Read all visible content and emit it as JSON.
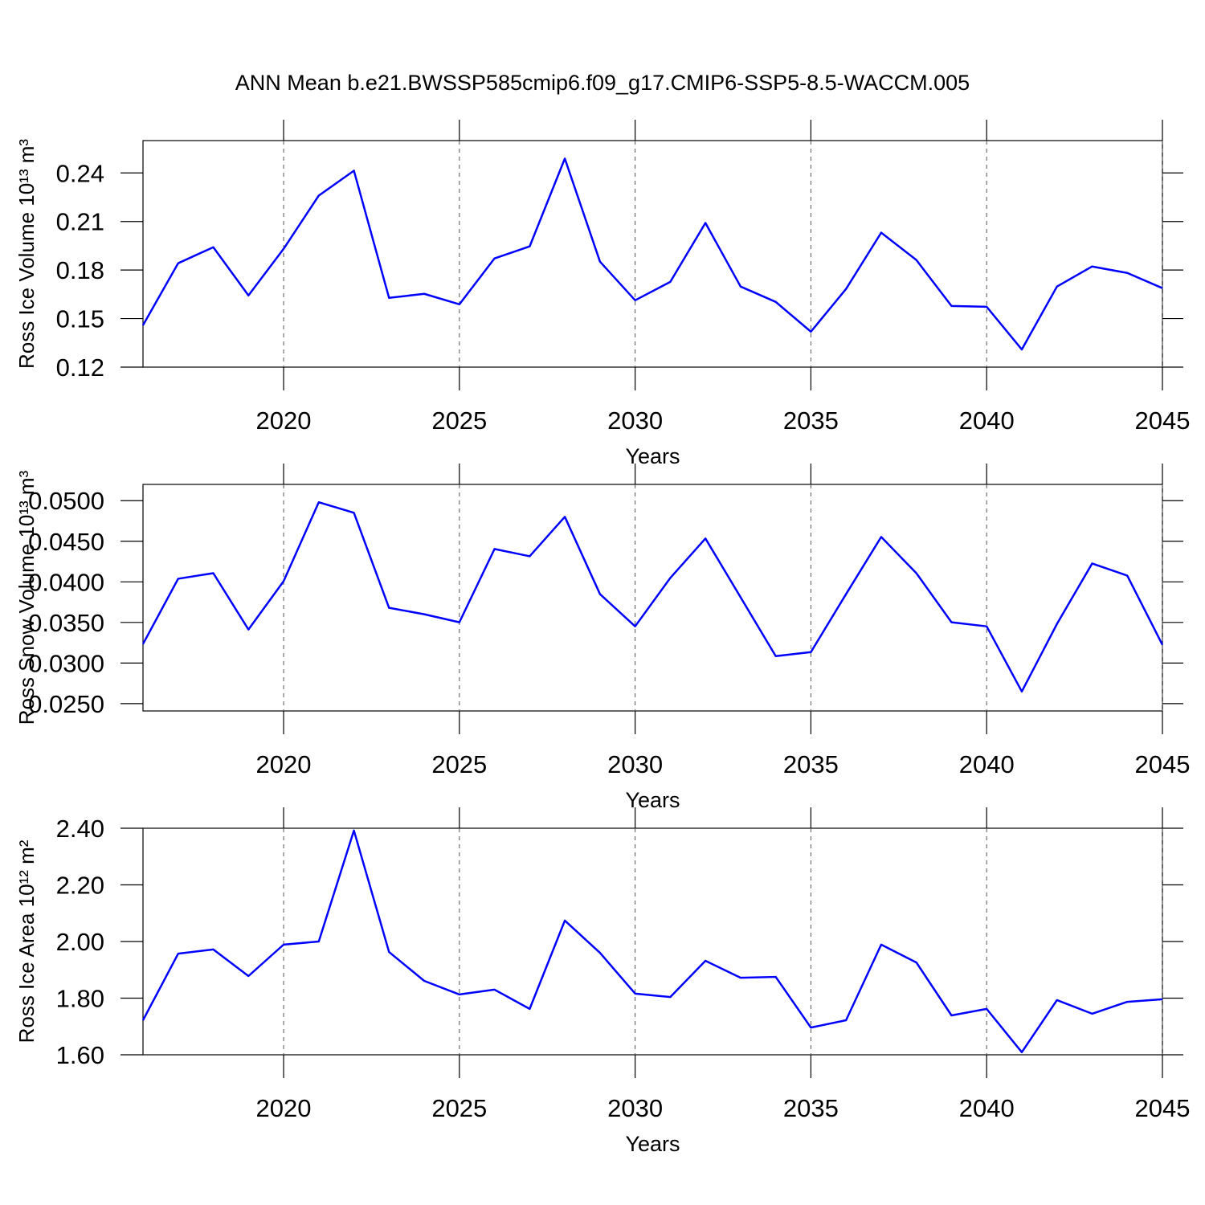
{
  "chart_data": [
    {
      "type": "line",
      "title": "ANN Mean b.e21.BWSSP585cmip6.f09_g17.CMIP6-SSP5-8.5-WACCM.005",
      "xlabel": "Years",
      "ylabel": "Ross Ice Volume 10¹³ m³",
      "color": "#0000ff",
      "grid": "x",
      "x": [
        2016,
        2017,
        2018,
        2019,
        2020,
        2021,
        2022,
        2023,
        2024,
        2025,
        2026,
        2027,
        2028,
        2029,
        2030,
        2031,
        2032,
        2033,
        2034,
        2035,
        2036,
        2037,
        2038,
        2039,
        2040,
        2041,
        2042,
        2043,
        2044,
        2045
      ],
      "values": [
        0.1459,
        0.1842,
        0.1941,
        0.1643,
        0.1931,
        0.226,
        0.2414,
        0.1628,
        0.1653,
        0.1588,
        0.1872,
        0.1946,
        0.2489,
        0.1852,
        0.1613,
        0.1727,
        0.2091,
        0.1698,
        0.1603,
        0.1419,
        0.1683,
        0.2031,
        0.1862,
        0.1578,
        0.1573,
        0.1309,
        0.1698,
        0.1822,
        0.1782,
        0.1688
      ],
      "xlim": [
        2016,
        2045
      ],
      "xticks": [
        2020,
        2025,
        2030,
        2035,
        2040,
        2045
      ],
      "ylim": [
        0.12,
        0.26
      ],
      "yticks": [
        0.12,
        0.15,
        0.18,
        0.21,
        0.24
      ]
    },
    {
      "type": "line",
      "xlabel": "Years",
      "ylabel": "Ross Snow Volume 10¹³ m³",
      "color": "#0000ff",
      "grid": "x",
      "x": [
        2016,
        2017,
        2018,
        2019,
        2020,
        2021,
        2022,
        2023,
        2024,
        2025,
        2026,
        2027,
        2028,
        2029,
        2030,
        2031,
        2032,
        2033,
        2034,
        2035,
        2036,
        2037,
        2038,
        2039,
        2040,
        2041,
        2042,
        2043,
        2044,
        2045
      ],
      "values": [
        0.03234,
        0.04038,
        0.04107,
        0.03413,
        0.04008,
        0.0498,
        0.04851,
        0.0368,
        0.03601,
        0.03502,
        0.04405,
        0.04315,
        0.04801,
        0.03849,
        0.03452,
        0.04048,
        0.04534,
        0.0381,
        0.03085,
        0.03135,
        0.03849,
        0.04553,
        0.04107,
        0.03502,
        0.03452,
        0.02649,
        0.03482,
        0.04226,
        0.04077,
        0.03224
      ],
      "xlim": [
        2016,
        2045
      ],
      "xticks": [
        2020,
        2025,
        2030,
        2035,
        2040,
        2045
      ],
      "ylim": [
        0.0241,
        0.052
      ],
      "yticks": [
        {
          "value": 0.025,
          "label": "0.0250"
        },
        {
          "value": 0.03,
          "label": "0.0300"
        },
        {
          "value": 0.035,
          "label": "0.0350"
        },
        {
          "value": 0.04,
          "label": "0.0400"
        },
        {
          "value": 0.045,
          "label": "0.0450"
        },
        {
          "value": 0.05,
          "label": "0.0500"
        }
      ]
    },
    {
      "type": "line",
      "xlabel": "Years",
      "ylabel": "Ross Ice Area 10¹² m²",
      "color": "#0000ff",
      "grid": "x",
      "x": [
        2016,
        2017,
        2018,
        2019,
        2020,
        2021,
        2022,
        2023,
        2024,
        2025,
        2026,
        2027,
        2028,
        2029,
        2030,
        2031,
        2032,
        2033,
        2034,
        2035,
        2036,
        2037,
        2038,
        2039,
        2040,
        2041,
        2042,
        2043,
        2044,
        2045
      ],
      "values": [
        1.722,
        1.957,
        1.972,
        1.878,
        1.989,
        2.0,
        2.392,
        1.963,
        1.861,
        1.813,
        1.83,
        1.762,
        2.074,
        1.96,
        1.816,
        1.804,
        1.932,
        1.872,
        1.875,
        1.696,
        1.722,
        1.989,
        1.926,
        1.739,
        1.762,
        1.609,
        1.793,
        1.745,
        1.787,
        1.796
      ],
      "xlim": [
        2016,
        2045
      ],
      "xticks": [
        2020,
        2025,
        2030,
        2035,
        2040,
        2045
      ],
      "ylim": [
        1.6,
        2.4
      ],
      "yticks": [
        {
          "value": 1.6,
          "label": "1.60"
        },
        {
          "value": 1.8,
          "label": "1.80"
        },
        {
          "value": 2.0,
          "label": "2.00"
        },
        {
          "value": 2.2,
          "label": "2.20"
        },
        {
          "value": 2.4,
          "label": "2.40"
        }
      ]
    }
  ]
}
